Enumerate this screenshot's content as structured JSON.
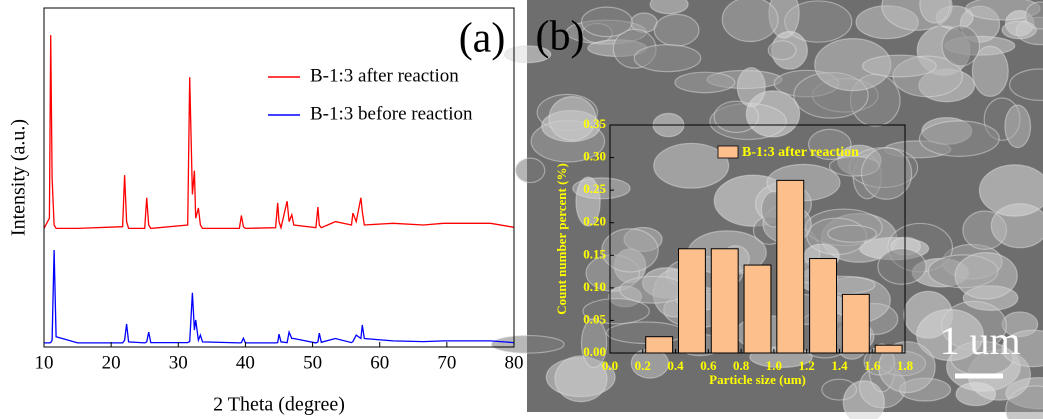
{
  "chart_data": [
    {
      "type": "line",
      "label": "(a)",
      "x_label": "2 Theta (degree)",
      "y_label": "Intensity (a.u.)",
      "x": [
        10,
        10.8,
        11,
        11.2,
        11.5,
        11.8,
        15,
        21.7,
        22,
        22.3,
        22.6,
        25,
        25.3,
        25.6,
        25.9,
        31.4,
        31.7,
        32.1,
        32.4,
        32.6,
        33,
        33.3,
        33.6,
        39.1,
        39.4,
        39.7,
        40,
        44.5,
        44.8,
        45,
        45.3,
        46.2,
        46.5,
        46.9,
        47.2,
        50.5,
        50.8,
        51,
        51.3,
        53.4,
        55.8,
        56,
        56.5,
        57.2,
        57.4,
        57.7,
        62,
        66.5,
        69.5,
        71,
        76.5,
        80
      ],
      "series": [
        {
          "name": "B-1:3 after reaction",
          "color": "#ff0000",
          "values": [
            35,
            38,
            92,
            50,
            36,
            35,
            35,
            35.5,
            50.7,
            37,
            35,
            35,
            44,
            36,
            35,
            36,
            79.6,
            45,
            52,
            38,
            41,
            36,
            35,
            35,
            38.8,
            35.5,
            35,
            35.2,
            42.5,
            37,
            35.2,
            43,
            37,
            39,
            36,
            35.2,
            41.3,
            36,
            35.2,
            37,
            36,
            39.5,
            37,
            44,
            40,
            36,
            36.5,
            36,
            36.5,
            36.5,
            36.5,
            35.3
          ]
        },
        {
          "name": "B-1:3 before reaction",
          "color": "#0000ff",
          "values": [
            1.2,
            1.2,
            1.3,
            2,
            28.6,
            3,
            1.2,
            1.2,
            2,
            6.8,
            1.5,
            1.2,
            1.5,
            4.4,
            1.3,
            1.3,
            1.6,
            16,
            5,
            8,
            2,
            3.5,
            1.5,
            1.2,
            1.3,
            2.6,
            1.2,
            1.2,
            1.3,
            3.8,
            1.5,
            1.3,
            4.4,
            2.5,
            2.5,
            1.2,
            1.5,
            4.1,
            1.4,
            2.5,
            1.3,
            1.6,
            3.5,
            2.5,
            6.5,
            2.5,
            1.8,
            1.6,
            1.8,
            1.8,
            1.8,
            1.3
          ]
        }
      ],
      "xlim": [
        10,
        80
      ],
      "xticks": [
        10,
        20,
        30,
        40,
        50,
        60,
        70,
        80
      ],
      "ylim": [
        0,
        100
      ],
      "legend": "upper right"
    },
    {
      "type": "histogram",
      "label": "(b)",
      "scale_bar_label": "1 um",
      "x_label": "Particle size (um)",
      "y_label": "Count number percent (%)",
      "bins": [
        0.2,
        0.4,
        0.6,
        0.8,
        1.0,
        1.2,
        1.4,
        1.6,
        1.8
      ],
      "series": [
        {
          "name": "B-1:3 after reaction",
          "color": "#fdbf8c",
          "values": [
            0.025,
            0.16,
            0.16,
            0.135,
            0.265,
            0.145,
            0.09,
            0.012
          ]
        }
      ],
      "xlim": [
        0,
        1.8
      ],
      "xticks": [
        {
          "value": 0,
          "label": "0.0"
        },
        0.2,
        0.4,
        0.6,
        0.8,
        {
          "value": 1,
          "label": "1.0"
        },
        1.2,
        1.4,
        1.6,
        1.8
      ],
      "ylim": [
        0,
        0.35
      ],
      "yticks": [
        {
          "value": 0,
          "label": "0.00"
        },
        {
          "value": 0.05,
          "label": "0.05"
        },
        {
          "value": 0.1,
          "label": "0.10"
        },
        {
          "value": 0.15,
          "label": "0.15"
        },
        {
          "value": 0.2,
          "label": "0.20"
        },
        {
          "value": 0.25,
          "label": "0.25"
        },
        {
          "value": 0.3,
          "label": "0.30"
        },
        {
          "value": 0.35,
          "label": "0.35"
        }
      ],
      "text_color": "#ffff00",
      "legend": "upper left"
    }
  ]
}
